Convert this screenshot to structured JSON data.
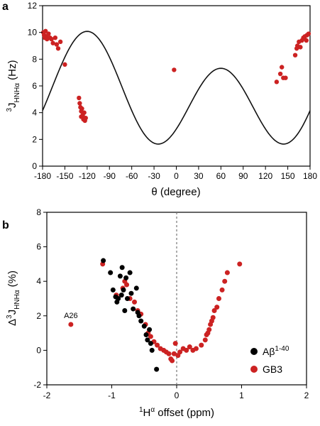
{
  "chart_data": [
    {
      "type": "scatter",
      "panel_label": "a",
      "xlabel": "θ (degree)",
      "ylabel_prefix": "3",
      "ylabel_main": "J",
      "ylabel_sub": "HNHα",
      "ylabel_unit": " (Hz)",
      "xlim": [
        -180,
        180
      ],
      "ylim": [
        0,
        12
      ],
      "x_ticks": [
        "-180",
        "-150",
        "-120",
        "-90",
        "-60",
        "-30",
        "0",
        "30",
        "60",
        "90",
        "120",
        "150",
        "180"
      ],
      "y_ticks": [
        "0",
        "2",
        "4",
        "6",
        "8",
        "10",
        "12"
      ],
      "grid": false,
      "point_color": "#cc2222",
      "curve_color": "#111111",
      "karplus_curve": {
        "A": 6.98,
        "B": -1.38,
        "C": 1.72,
        "offset_deg": -60
      },
      "series": [
        {
          "points": [
            [
              -179,
              10.0
            ],
            [
              -178,
              9.8
            ],
            [
              -177,
              9.6
            ],
            [
              -176,
              10.1
            ],
            [
              -175,
              9.7
            ],
            [
              -174,
              9.5
            ],
            [
              -172,
              9.9
            ],
            [
              -170,
              9.6
            ],
            [
              -168,
              9.5
            ],
            [
              -166,
              9.2
            ],
            [
              -163,
              9.6
            ],
            [
              -161,
              9.1
            ],
            [
              -159,
              8.8
            ],
            [
              -156,
              9.3
            ],
            [
              -150,
              7.6
            ],
            [
              -131,
              5.1
            ],
            [
              -130,
              4.7
            ],
            [
              -129,
              4.4
            ],
            [
              -128,
              4.1
            ],
            [
              -128,
              3.7
            ],
            [
              -127,
              4.3
            ],
            [
              -126,
              3.8
            ],
            [
              -125,
              3.5
            ],
            [
              -124,
              4.0
            ],
            [
              -123,
              3.4
            ],
            [
              -122,
              3.6
            ],
            [
              -3,
              7.2
            ],
            [
              135,
              6.3
            ],
            [
              140,
              6.9
            ],
            [
              142,
              7.4
            ],
            [
              144,
              6.6
            ],
            [
              147,
              6.6
            ],
            [
              160,
              8.3
            ],
            [
              162,
              8.8
            ],
            [
              163,
              9.0
            ],
            [
              165,
              9.3
            ],
            [
              167,
              8.9
            ],
            [
              169,
              9.4
            ],
            [
              171,
              9.6
            ],
            [
              173,
              9.7
            ],
            [
              175,
              9.4
            ],
            [
              176,
              9.8
            ],
            [
              178,
              9.9
            ]
          ]
        }
      ]
    },
    {
      "type": "scatter",
      "panel_label": "b",
      "xlabel_sup": "1",
      "xlabel_main": "H",
      "xlabel_alpha": "α",
      "xlabel_rest": " offset (ppm)",
      "ylabel_prefix": "Δ",
      "ylabel_sup": "3",
      "ylabel_main": "J",
      "ylabel_sub": "HNHα",
      "ylabel_unit": " (%)",
      "xlim": [
        -2,
        2
      ],
      "ylim": [
        -2,
        8
      ],
      "x_ticks": [
        "-2",
        "-1",
        "0",
        "1",
        "2"
      ],
      "y_ticks": [
        "-2",
        "0",
        "2",
        "4",
        "6",
        "8"
      ],
      "grid": false,
      "reference_line_x": 0,
      "annotations": [
        {
          "text": "A26",
          "x": -1.63,
          "y": 1.5
        }
      ],
      "legend_position": "bottom-right",
      "series": [
        {
          "name_main": "Aβ",
          "name_sup": "1-40",
          "color": "#000000",
          "points": [
            [
              -1.13,
              5.2
            ],
            [
              -1.02,
              4.5
            ],
            [
              -0.98,
              3.5
            ],
            [
              -0.94,
              3.1
            ],
            [
              -0.92,
              2.8
            ],
            [
              -0.9,
              3.0
            ],
            [
              -0.87,
              4.3
            ],
            [
              -0.85,
              3.2
            ],
            [
              -0.84,
              4.8
            ],
            [
              -0.82,
              3.5
            ],
            [
              -0.8,
              2.3
            ],
            [
              -0.78,
              4.2
            ],
            [
              -0.76,
              3.0
            ],
            [
              -0.72,
              4.5
            ],
            [
              -0.7,
              3.3
            ],
            [
              -0.67,
              2.4
            ],
            [
              -0.62,
              3.6
            ],
            [
              -0.6,
              2.2
            ],
            [
              -0.58,
              2.0
            ],
            [
              -0.55,
              1.7
            ],
            [
              -0.5,
              1.4
            ],
            [
              -0.47,
              0.9
            ],
            [
              -0.45,
              0.6
            ],
            [
              -0.42,
              1.2
            ],
            [
              -0.4,
              0.4
            ],
            [
              -0.38,
              0.0
            ],
            [
              -0.31,
              -1.1
            ]
          ]
        },
        {
          "name_main": "GB3",
          "color": "#cc2222",
          "points": [
            [
              -1.63,
              1.5
            ],
            [
              -1.14,
              5.0
            ],
            [
              -0.93,
              3.2
            ],
            [
              -0.83,
              3.6
            ],
            [
              -0.8,
              4.0
            ],
            [
              -0.77,
              3.8
            ],
            [
              -0.72,
              3.0
            ],
            [
              -0.65,
              2.8
            ],
            [
              -0.6,
              2.3
            ],
            [
              -0.55,
              2.1
            ],
            [
              -0.48,
              1.5
            ],
            [
              -0.44,
              1.0
            ],
            [
              -0.4,
              0.8
            ],
            [
              -0.35,
              0.5
            ],
            [
              -0.3,
              0.3
            ],
            [
              -0.25,
              0.1
            ],
            [
              -0.2,
              0.0
            ],
            [
              -0.16,
              -0.1
            ],
            [
              -0.12,
              -0.2
            ],
            [
              -0.09,
              -0.5
            ],
            [
              -0.07,
              -0.6
            ],
            [
              -0.04,
              -0.2
            ],
            [
              -0.02,
              0.4
            ],
            [
              0.02,
              -0.3
            ],
            [
              0.05,
              -0.1
            ],
            [
              0.1,
              0.1
            ],
            [
              0.15,
              0.0
            ],
            [
              0.2,
              0.2
            ],
            [
              0.25,
              0.0
            ],
            [
              0.3,
              0.1
            ],
            [
              0.38,
              0.3
            ],
            [
              0.44,
              0.6
            ],
            [
              0.46,
              0.9
            ],
            [
              0.48,
              1.0
            ],
            [
              0.5,
              1.2
            ],
            [
              0.52,
              1.5
            ],
            [
              0.54,
              1.7
            ],
            [
              0.56,
              1.9
            ],
            [
              0.58,
              2.3
            ],
            [
              0.62,
              2.5
            ],
            [
              0.65,
              3.0
            ],
            [
              0.7,
              3.5
            ],
            [
              0.74,
              4.0
            ],
            [
              0.78,
              4.5
            ],
            [
              0.97,
              5.0
            ]
          ]
        }
      ]
    }
  ]
}
